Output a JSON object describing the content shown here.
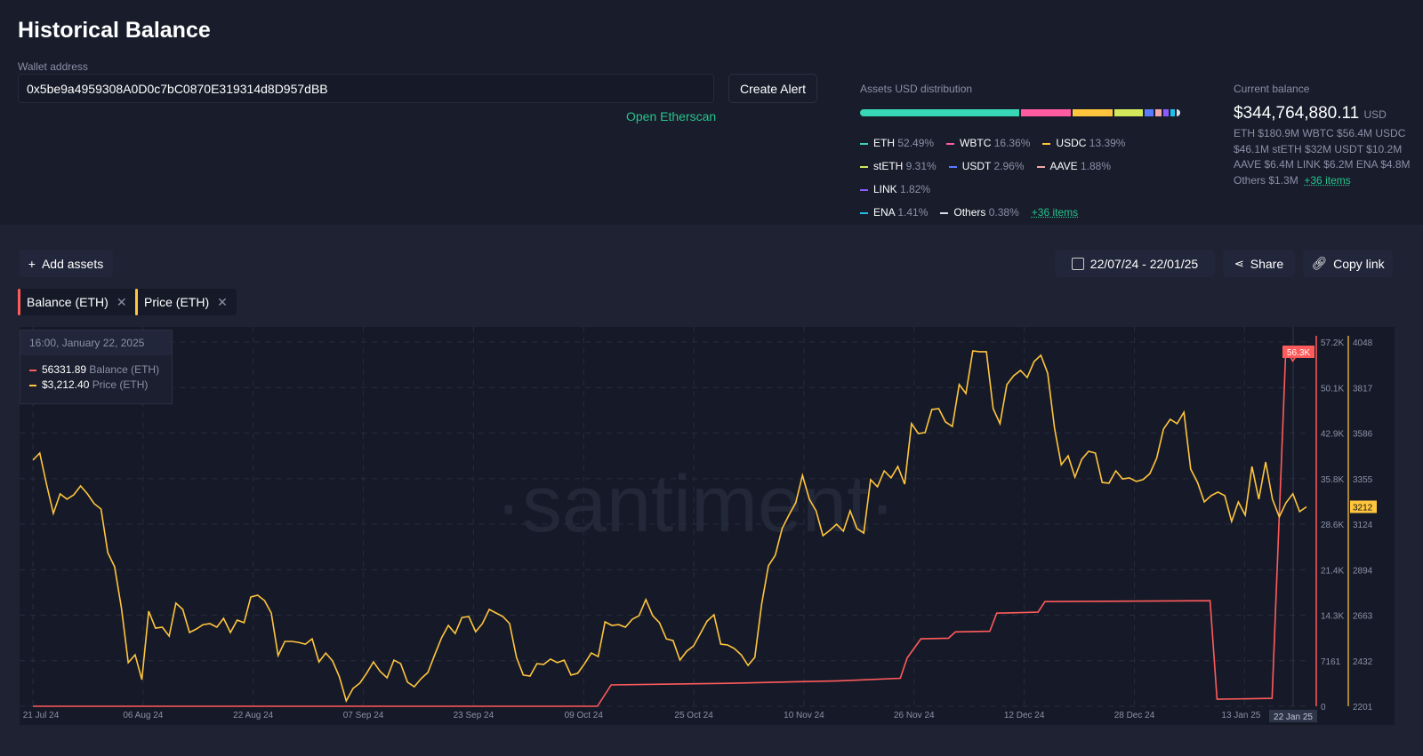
{
  "header": {
    "title": "Historical Balance",
    "wallet_label": "Wallet address",
    "wallet_value": "0x5be9a4959308A0D0c7bC0870E319314d8D957dBB",
    "create_alert": "Create Alert",
    "open_etherscan": "Open Etherscan"
  },
  "distribution": {
    "title": "Assets USD distribution",
    "items": [
      {
        "name": "ETH",
        "pct": "52.49%",
        "color": "#37d6b6"
      },
      {
        "name": "WBTC",
        "pct": "16.36%",
        "color": "#ff5ba0"
      },
      {
        "name": "USDC",
        "pct": "13.39%",
        "color": "#ffc53d"
      },
      {
        "name": "stETH",
        "pct": "9.31%",
        "color": "#d3e85a"
      },
      {
        "name": "USDT",
        "pct": "2.96%",
        "color": "#5b7bff"
      },
      {
        "name": "AAVE",
        "pct": "1.88%",
        "color": "#f0a8a8"
      },
      {
        "name": "LINK",
        "pct": "1.82%",
        "color": "#8a5bff"
      },
      {
        "name": "ENA",
        "pct": "1.41%",
        "color": "#1ec2e6"
      },
      {
        "name": "Others",
        "pct": "0.38%",
        "color": "#d8dbe6"
      }
    ],
    "more": "+36 items"
  },
  "current_balance": {
    "title": "Current balance",
    "value": "$344,764,880.11",
    "unit": "USD",
    "details": "ETH $180.9M  WBTC $56.4M  USDC $46.1M  stETH $32M  USDT $10.2M  AAVE $6.4M  LINK $6.2M  ENA $4.8M  Others $1.3M",
    "more": "+36 items"
  },
  "toolbar": {
    "add_assets": "Add assets",
    "date_range": "22/07/24 - 22/01/25",
    "share": "Share",
    "copy_link": "Copy link"
  },
  "chips": [
    {
      "label": "Balance (ETH)",
      "color": "#ff5b5b"
    },
    {
      "label": "Price (ETH)",
      "color": "#ffc53d"
    }
  ],
  "tooltip": {
    "time": "16:00, January 22, 2025",
    "rows": [
      {
        "value": "56331.89",
        "label": "Balance (ETH)",
        "color": "#ff5b5b"
      },
      {
        "value": "$3,212.40",
        "label": "Price (ETH)",
        "color": "#ffc53d"
      }
    ]
  },
  "watermark": "·santiment·",
  "chart_data": {
    "type": "line",
    "x_range": [
      "2024-07-21",
      "2025-01-22"
    ],
    "x_ticks": [
      "21 Jul 24",
      "06 Aug 24",
      "22 Aug 24",
      "07 Sep 24",
      "23 Sep 24",
      "09 Oct 24",
      "25 Oct 24",
      "10 Nov 24",
      "26 Nov 24",
      "12 Dec 24",
      "28 Dec 24",
      "13 Jan 25"
    ],
    "x_tick_dates": [
      "2024-07-21",
      "2024-08-06",
      "2024-08-22",
      "2024-09-07",
      "2024-09-23",
      "2024-10-09",
      "2024-10-25",
      "2024-11-10",
      "2024-11-26",
      "2024-12-12",
      "2024-12-28",
      "2025-01-13"
    ],
    "crosshair_label": "22 Jan 25",
    "balance_axis": {
      "ticks": [
        "0",
        "7161",
        "14.3K",
        "21.4K",
        "28.6K",
        "35.8K",
        "42.9K",
        "50.1K",
        "57.2K"
      ],
      "range": [
        0,
        57290
      ],
      "current": "56.3K"
    },
    "price_axis": {
      "ticks": [
        "2201",
        "2432",
        "2663",
        "2894",
        "3124",
        "3355",
        "3586",
        "3817",
        "4048"
      ],
      "range": [
        2201,
        4048
      ],
      "current": "3212"
    },
    "grid": true,
    "series": [
      {
        "name": "Balance (ETH)",
        "color": "#ff5b5b",
        "points": [
          [
            "2024-07-21",
            0
          ],
          [
            "2024-10-11",
            0
          ],
          [
            "2024-10-13",
            3350
          ],
          [
            "2024-10-30",
            3600
          ],
          [
            "2024-11-15",
            4000
          ],
          [
            "2024-11-24",
            4400
          ],
          [
            "2024-11-25",
            7600
          ],
          [
            "2024-11-27",
            10600
          ],
          [
            "2024-12-01",
            10700
          ],
          [
            "2024-12-02",
            11700
          ],
          [
            "2024-12-07",
            11800
          ],
          [
            "2024-12-08",
            14650
          ],
          [
            "2024-12-14",
            14800
          ],
          [
            "2024-12-15",
            16460
          ],
          [
            "2025-01-08",
            16600
          ],
          [
            "2025-01-09",
            1100
          ],
          [
            "2025-01-17",
            1250
          ],
          [
            "2025-01-19",
            56300
          ],
          [
            "2025-01-20",
            54300
          ],
          [
            "2025-01-21",
            55800
          ],
          [
            "2025-01-22",
            56331.89
          ]
        ]
      },
      {
        "name": "Price (ETH)",
        "color": "#ffc53d",
        "values": [
          3449,
          3485,
          3327,
          3179,
          3278,
          3251,
          3273,
          3318,
          3278,
          3228,
          3201,
          2980,
          2908,
          2697,
          2422,
          2462,
          2336,
          2683,
          2597,
          2602,
          2557,
          2724,
          2692,
          2575,
          2593,
          2615,
          2620,
          2602,
          2647,
          2575,
          2638,
          2625,
          2755,
          2764,
          2737,
          2674,
          2458,
          2530,
          2530,
          2525,
          2516,
          2543,
          2426,
          2471,
          2431,
          2350,
          2228,
          2291,
          2318,
          2368,
          2426,
          2377,
          2345,
          2435,
          2417,
          2323,
          2300,
          2341,
          2372,
          2462,
          2548,
          2611,
          2570,
          2651,
          2656,
          2579,
          2620,
          2692,
          2674,
          2656,
          2620,
          2449,
          2359,
          2354,
          2417,
          2413,
          2440,
          2422,
          2435,
          2359,
          2368,
          2417,
          2471,
          2453,
          2629,
          2611,
          2615,
          2602,
          2642,
          2660,
          2742,
          2660,
          2625,
          2543,
          2534,
          2435,
          2480,
          2507,
          2570,
          2633,
          2665,
          2516,
          2512,
          2494,
          2462,
          2408,
          2449,
          2719,
          2913,
          2967,
          3102,
          3170,
          3233,
          3372,
          3251,
          3192,
          3066,
          3093,
          3124,
          3089,
          3192,
          3102,
          3079,
          3350,
          3314,
          3395,
          3359,
          3417,
          3327,
          3634,
          3584,
          3589,
          3706,
          3710,
          3643,
          3620,
          3832,
          3787,
          4003,
          3999,
          3999,
          3710,
          3634,
          3832,
          3877,
          3904,
          3868,
          3949,
          3981,
          3890,
          3611,
          3426,
          3471,
          3363,
          3453,
          3494,
          3485,
          3336,
          3332,
          3395,
          3354,
          3359,
          3341,
          3350,
          3381,
          3458,
          3606,
          3656,
          3634,
          3692,
          3404,
          3336,
          3237,
          3269,
          3287,
          3269,
          3138,
          3237,
          3170,
          3417,
          3251,
          3440,
          3251,
          3161,
          3233,
          3278,
          3188,
          3212.4
        ]
      }
    ]
  }
}
